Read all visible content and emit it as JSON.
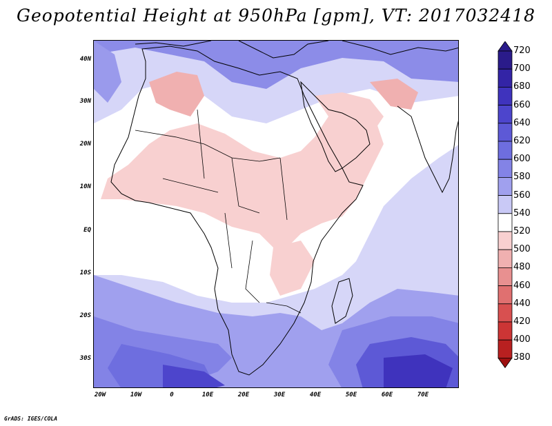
{
  "title": "Geopotential Height at 950hPa [gpm], VT: 2017032418",
  "credit": "GrADS: IGES/COLA",
  "lat_labels": [
    "40N",
    "30N",
    "20N",
    "10N",
    "EQ",
    "10S",
    "20S",
    "30S"
  ],
  "lon_labels": [
    "20W",
    "10W",
    "0",
    "10E",
    "20E",
    "30E",
    "40E",
    "50E",
    "60E",
    "70E"
  ],
  "colorbar": {
    "levels": [
      "720",
      "700",
      "680",
      "660",
      "640",
      "620",
      "600",
      "580",
      "560",
      "540",
      "520",
      "500",
      "480",
      "460",
      "440",
      "420",
      "400",
      "380"
    ],
    "colors": [
      "#2a1b8a",
      "#3324a6",
      "#3f33bd",
      "#4d45cc",
      "#5d59d6",
      "#6e6edf",
      "#8383e6",
      "#a0a0ee",
      "#c9c9f6",
      "#ffffff",
      "#f8d0d0",
      "#f0b0b0",
      "#e89090",
      "#e07070",
      "#d85050",
      "#cc3535",
      "#b82020",
      "#9e1010"
    ]
  },
  "regions": {
    "sahara": "520",
    "arabia": "520",
    "indian_ocean": "560",
    "southern_ocean": "620",
    "mediterranean": "600"
  }
}
